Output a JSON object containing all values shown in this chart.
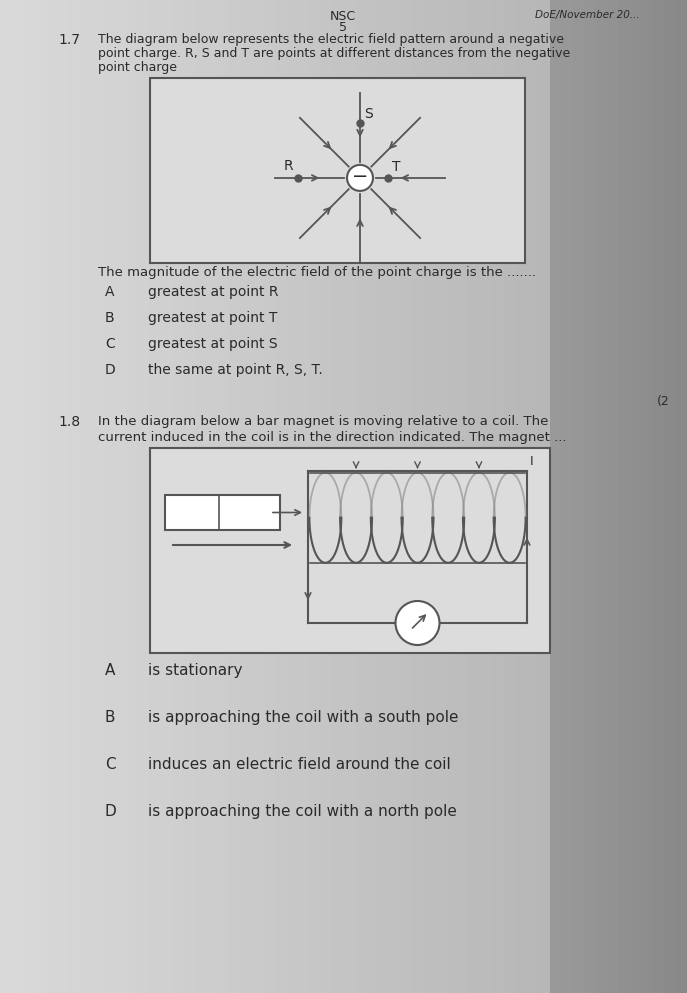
{
  "bg_color": "#b8b8b8",
  "page_left_color": "#d8d8d8",
  "page_right_color": "#909090",
  "header_nsc": "NSC",
  "header_5": "5",
  "header_right": "DoE/November 20...",
  "q17_number": "1.7",
  "q17_intro_line1": "The diagram below represents the electric field pattern around a negative",
  "q17_intro_line2": "point charge. R, S and T are points at different distances from the negative",
  "q17_intro_line3": "point charge",
  "q17_question": "The magnitude of the electric field of the point charge is the .......",
  "q17_options": [
    [
      "A",
      "greatest at point R"
    ],
    [
      "B",
      "greatest at point T"
    ],
    [
      "C",
      "greatest at point S"
    ],
    [
      "D",
      "the same at point R, S, T."
    ]
  ],
  "q18_number": "1.8",
  "q18_intro_line1": "In the diagram below a bar magnet is moving relative to a coil. The",
  "q18_intro_line2": "current induced in the coil is in the direction indicated. The magnet ...",
  "q18_options": [
    [
      "A",
      "is stationary"
    ],
    [
      "B",
      "is approaching the coil with a south pole"
    ],
    [
      "C",
      "induces an electric field around the coil"
    ],
    [
      "D",
      "is approaching the coil with a north pole"
    ]
  ],
  "text_color": "#2a2a2a",
  "diagram_edge": "#555555",
  "diagram_fill": "#e0e0e0"
}
